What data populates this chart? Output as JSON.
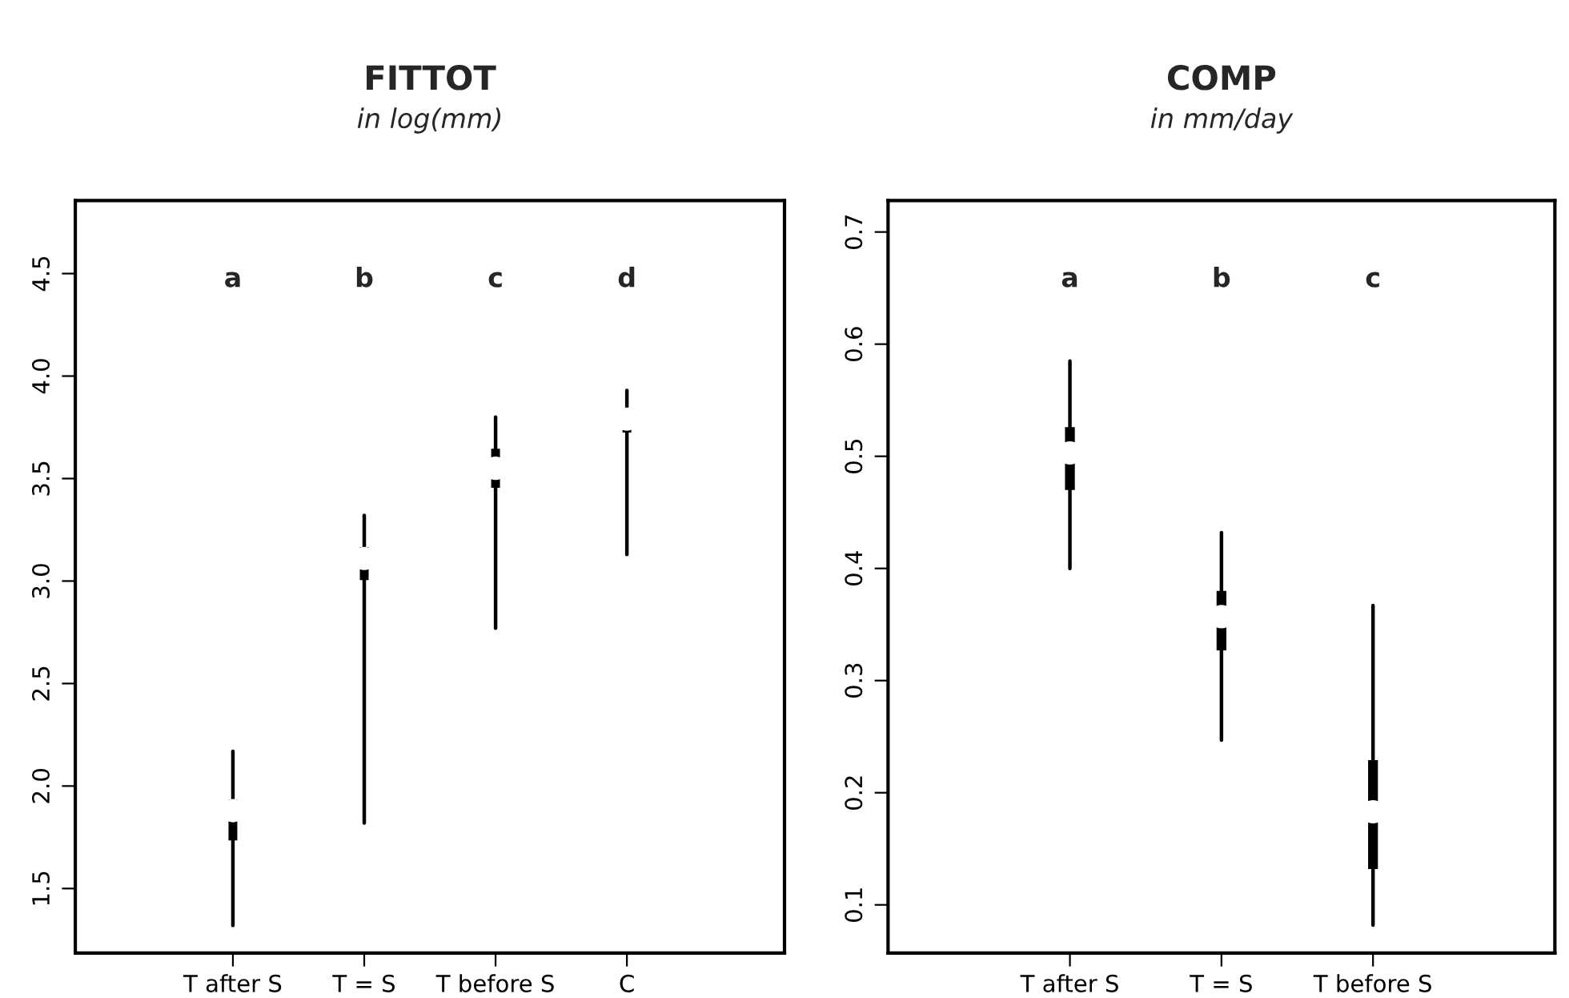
{
  "chart_data": [
    {
      "type": "box",
      "title": "FITTOT",
      "subtitle": "in log(mm)",
      "categories": [
        "T after S",
        "T = S",
        "T before S",
        "C"
      ],
      "boxes": [
        {
          "low": 1.32,
          "q1": 1.74,
          "median": 1.88,
          "q3": 1.93,
          "high": 2.17
        },
        {
          "low": 1.82,
          "q1": 3.01,
          "median": 3.11,
          "q3": 3.16,
          "high": 3.32
        },
        {
          "low": 2.77,
          "q1": 3.46,
          "median": 3.55,
          "q3": 3.64,
          "high": 3.8
        },
        {
          "low": 3.13,
          "q1": 3.73,
          "median": 3.79,
          "q3": 3.81,
          "high": 3.93
        }
      ],
      "ylim": [
        1.185,
        4.856
      ],
      "yticks": [
        1.5,
        {
          "value": 2,
          "label": "2.0"
        },
        2.5,
        {
          "value": 3,
          "label": "3.0"
        },
        3.5,
        {
          "value": 4,
          "label": "4.0"
        },
        4.5
      ],
      "grid": false,
      "annotations": [
        "a",
        "b",
        "c",
        "d"
      ]
    },
    {
      "type": "box",
      "title": "COMP",
      "subtitle": "in mm/day",
      "categories": [
        "T after S",
        "T = S",
        "T before S"
      ],
      "boxes": [
        {
          "low": 0.4,
          "q1": 0.471,
          "median": 0.503,
          "q3": 0.525,
          "high": 0.585
        },
        {
          "low": 0.247,
          "q1": 0.328,
          "median": 0.357,
          "q3": 0.379,
          "high": 0.432
        },
        {
          "low": 0.082,
          "q1": 0.133,
          "median": 0.183,
          "q3": 0.228,
          "high": 0.367
        }
      ],
      "ylim": [
        0.057,
        0.728
      ],
      "yticks": [
        0.1,
        0.2,
        0.3,
        0.4,
        0.5,
        0.6,
        0.7
      ],
      "grid": false,
      "annotations": [
        "a",
        "b",
        "c"
      ]
    }
  ]
}
